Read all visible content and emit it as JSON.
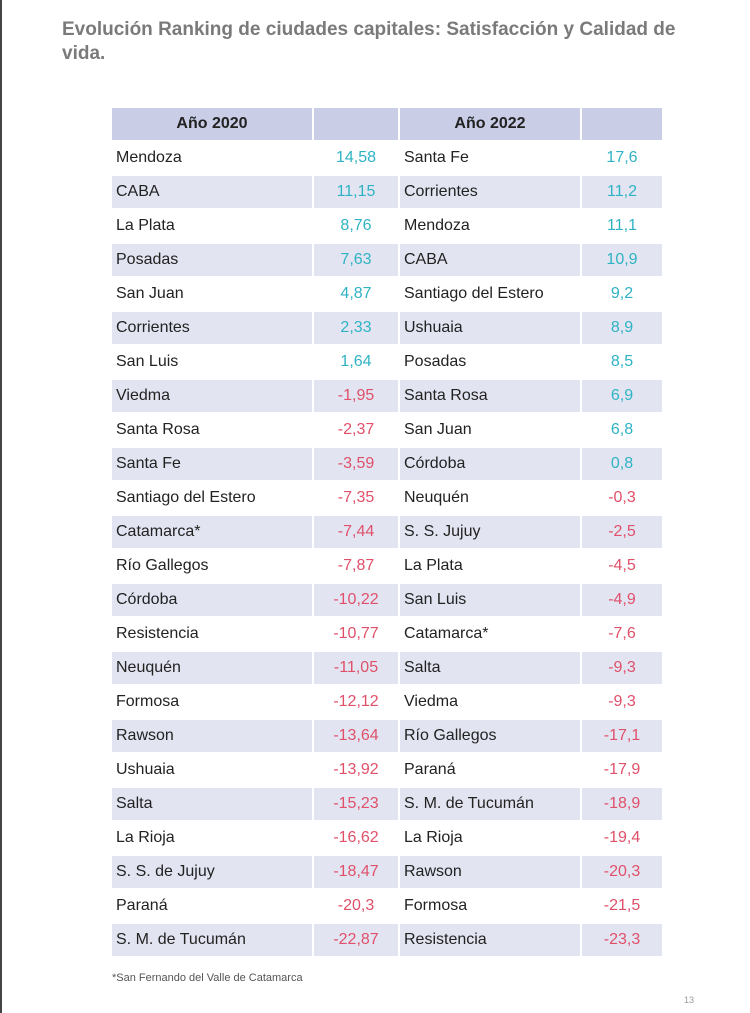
{
  "title": "Evolución Ranking de ciudades capitales: Satisfacción y Calidad de vida.",
  "table": {
    "headers": [
      "Año 2020",
      "Año 2022"
    ],
    "rows": [
      [
        "Mendoza",
        "14,58",
        "Santa Fe",
        "17,6"
      ],
      [
        "CABA",
        "11,15",
        "Corrientes",
        "11,2"
      ],
      [
        "La Plata",
        "8,76",
        "Mendoza",
        "11,1"
      ],
      [
        "Posadas",
        "7,63",
        "CABA",
        "10,9"
      ],
      [
        "San Juan",
        "4,87",
        "Santiago del Estero",
        "9,2"
      ],
      [
        "Corrientes",
        "2,33",
        "Ushuaia",
        "8,9"
      ],
      [
        "San Luis",
        "1,64",
        "Posadas",
        "8,5"
      ],
      [
        "Viedma",
        "-1,95",
        "Santa Rosa",
        "6,9"
      ],
      [
        "Santa Rosa",
        "-2,37",
        "San Juan",
        "6,8"
      ],
      [
        "Santa Fe",
        "-3,59",
        "Córdoba",
        "0,8"
      ],
      [
        "Santiago del Estero",
        "-7,35",
        "Neuquén",
        "-0,3"
      ],
      [
        "Catamarca*",
        "-7,44",
        "S. S. Jujuy",
        "-2,5"
      ],
      [
        "Río Gallegos",
        "-7,87",
        "La Plata",
        "-4,5"
      ],
      [
        "Córdoba",
        "-10,22",
        "San Luis",
        "-4,9"
      ],
      [
        "Resistencia",
        "-10,77",
        "Catamarca*",
        "-7,6"
      ],
      [
        "Neuquén",
        "-11,05",
        "Salta",
        "-9,3"
      ],
      [
        "Formosa",
        "-12,12",
        "Viedma",
        "-9,3"
      ],
      [
        "Rawson",
        "-13,64",
        "Río Gallegos",
        "-17,1"
      ],
      [
        "Ushuaia",
        "-13,92",
        "Paraná",
        "-17,9"
      ],
      [
        "Salta",
        "-15,23",
        "S. M. de Tucumán",
        "-18,9"
      ],
      [
        "La Rioja",
        "-16,62",
        "La Rioja",
        "-19,4"
      ],
      [
        "S. S. de Jujuy",
        "-18,47",
        "Rawson",
        "-20,3"
      ],
      [
        "Paraná",
        "-20,3",
        "Formosa",
        "-21,5"
      ],
      [
        "S. M. de Tucumán",
        "-22,87",
        "Resistencia",
        "-23,3"
      ]
    ]
  },
  "footnote": "*San Fernando del Valle de Catamarca",
  "page_number": "13"
}
